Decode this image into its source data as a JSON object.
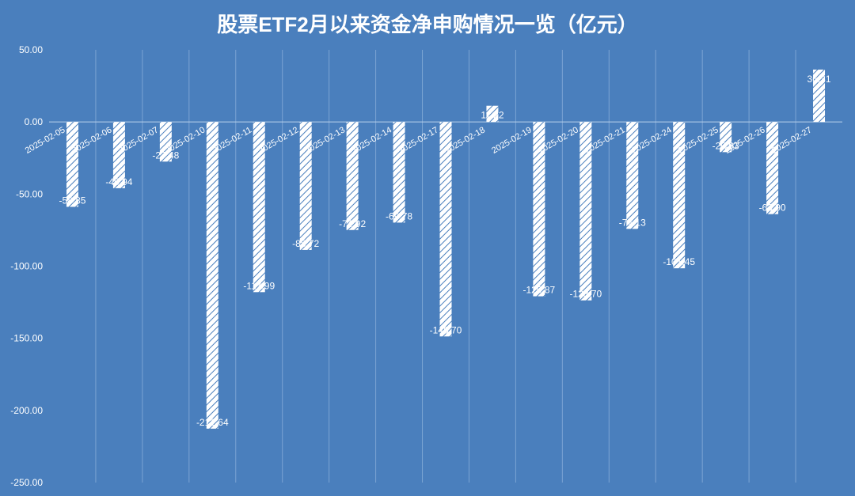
{
  "chart_data": {
    "type": "bar",
    "title": "股票ETF2月以来资金净申购情况一览（亿元）",
    "xlabel": "",
    "ylabel": "",
    "ylim": [
      -250,
      50
    ],
    "yticks": [
      "50.00",
      "0.00",
      "-50.00",
      "-100.00",
      "-150.00",
      "-200.00",
      "-250.00"
    ],
    "grid": true,
    "categories": [
      "2025-02-05",
      "2025-02-06",
      "2025-02-07",
      "2025-02-10",
      "2025-02-11",
      "2025-02-12",
      "2025-02-13",
      "2025-02-14",
      "2025-02-17",
      "2025-02-18",
      "2025-02-19",
      "2025-02-20",
      "2025-02-21",
      "2025-02-24",
      "2025-02-25",
      "2025-02-26",
      "2025-02-27"
    ],
    "values": [
      -58.85,
      -45.94,
      -27.48,
      -212.64,
      -117.99,
      -88.72,
      -74.92,
      -69.78,
      -148.7,
      11.22,
      -120.87,
      -123.7,
      -74.13,
      -101.45,
      -20.93,
      -63.9,
      36.31
    ],
    "labels": [
      "-58.85",
      "-45.94",
      "-27.48",
      "-212.64",
      "-117.99",
      "-88.72",
      "-74.92",
      "-69.78",
      "-148.70",
      "11.22",
      "-120.87",
      "-123.70",
      "-74.13",
      "-101.45",
      "-20.93",
      "-63.90",
      "36.31"
    ]
  },
  "colors": {
    "background": "#4a7fbd",
    "bar_fill": "#ffffff",
    "hatch": "#4a7fbd",
    "text": "#ffffff",
    "grid": "#9dbde2"
  }
}
